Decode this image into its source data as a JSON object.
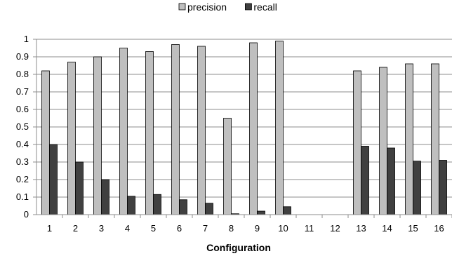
{
  "chart_data": {
    "type": "bar",
    "title": "",
    "xlabel": "Configuration",
    "ylabel": "",
    "categories": [
      "1",
      "2",
      "3",
      "4",
      "5",
      "6",
      "7",
      "8",
      "9",
      "10",
      "11",
      "12",
      "13",
      "14",
      "15",
      "16"
    ],
    "series": [
      {
        "name": "precision",
        "color": "#BFBFBF",
        "values": [
          0.82,
          0.87,
          0.9,
          0.95,
          0.93,
          0.97,
          0.96,
          0.55,
          0.98,
          0.99,
          0,
          0,
          0.82,
          0.84,
          0.86,
          0.86
        ]
      },
      {
        "name": "recall",
        "color": "#404040",
        "values": [
          0.4,
          0.3,
          0.2,
          0.105,
          0.115,
          0.085,
          0.065,
          0.005,
          0.02,
          0.045,
          0,
          0,
          0.39,
          0.38,
          0.305,
          0.31
        ]
      }
    ],
    "ylim": [
      0,
      1
    ],
    "yticks": [
      "0",
      "0.1",
      "0.2",
      "0.3",
      "0.4",
      "0.5",
      "0.6",
      "0.7",
      "0.8",
      "0.9",
      "1"
    ],
    "grid": true,
    "legend_position": "top-center"
  }
}
